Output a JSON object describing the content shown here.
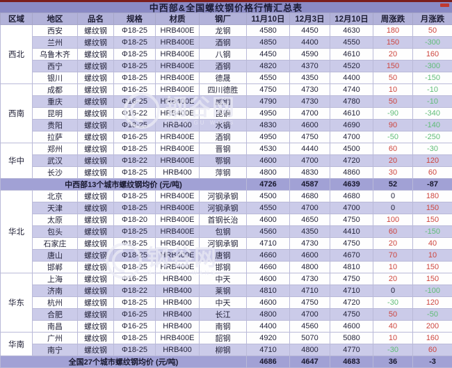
{
  "colors": {
    "title_bg": "#8a8ac5",
    "header_bg": "#b2b2d9",
    "stripe_bg": "#cbcbe9",
    "summary_bg": "#a1a1d5",
    "grid_line": "#b9b9d8",
    "text_dark": "#23233a",
    "up_red": "#cd453e",
    "down_green": "#5fbc77",
    "top_line": "#7a1d1d",
    "red_mark": "#c03a30"
  },
  "watermark": {
    "logo_text": "钢谷网",
    "sub_text": "GANG GU WANG"
  },
  "chart_data": {
    "type": "table",
    "title": "中西部&全国螺纹钢价格行情汇总表",
    "columns": [
      "区域",
      "地区",
      "品名",
      "规格",
      "材质",
      "钢厂",
      "11月10日",
      "12月3日",
      "12月10日",
      "周涨跌",
      "月涨跌"
    ],
    "date_keys": [
      "nov10",
      "dec3",
      "dec10"
    ],
    "unit": "元/吨",
    "rows": [
      {
        "type": "city",
        "region": "西北",
        "city": "西安",
        "product": "螺纹钢",
        "spec": "Φ18-25",
        "material": "HRB400E",
        "mill": "龙钢",
        "prices": [
          "4580",
          "4450",
          "4630"
        ],
        "week": "180",
        "month": "50"
      },
      {
        "type": "city",
        "region": "西北",
        "city": "兰州",
        "product": "螺纹钢",
        "spec": "Φ18-25",
        "material": "HRB400E",
        "mill": "酒钢",
        "prices": [
          "4850",
          "4400",
          "4550"
        ],
        "week": "150",
        "month": "-300"
      },
      {
        "type": "city",
        "region": "西北",
        "city": "乌鲁木齐",
        "product": "螺纹钢",
        "spec": "Φ18-25",
        "material": "HRB400E",
        "mill": "八钢",
        "prices": [
          "4450",
          "4590",
          "4610"
        ],
        "week": "20",
        "month": "160"
      },
      {
        "type": "city",
        "region": "西北",
        "city": "西宁",
        "product": "螺纹钢",
        "spec": "Φ18-25",
        "material": "HRB400E",
        "mill": "酒钢",
        "prices": [
          "4820",
          "4370",
          "4520"
        ],
        "week": "150",
        "month": "-300"
      },
      {
        "type": "city",
        "region": "西北",
        "city": "银川",
        "product": "螺纹钢",
        "spec": "Φ18-25",
        "material": "HRB400E",
        "mill": "德晟",
        "prices": [
          "4550",
          "4350",
          "4400"
        ],
        "week": "50",
        "month": "-150"
      },
      {
        "type": "city",
        "region": "西南",
        "city": "成都",
        "product": "螺纹钢",
        "spec": "Φ16-25",
        "material": "HRB400E",
        "mill": "四川德胜",
        "prices": [
          "4750",
          "4730",
          "4740"
        ],
        "week": "10",
        "month": "-10"
      },
      {
        "type": "city",
        "region": "西南",
        "city": "重庆",
        "product": "螺纹钢",
        "spec": "Φ16-25",
        "material": "HRB400E",
        "mill": "威钢",
        "prices": [
          "4790",
          "4730",
          "4780"
        ],
        "week": "50",
        "month": "-10"
      },
      {
        "type": "city",
        "region": "西南",
        "city": "昆明",
        "product": "螺纹钢",
        "spec": "Φ16-22",
        "material": "HRB400E",
        "mill": "昆钢",
        "prices": [
          "4950",
          "4700",
          "4610"
        ],
        "week": "-90",
        "month": "-340"
      },
      {
        "type": "city",
        "region": "西南",
        "city": "贵阳",
        "product": "螺纹钢",
        "spec": "Φ18-25",
        "material": "HRB400",
        "mill": "水钢",
        "prices": [
          "4830",
          "4600",
          "4690"
        ],
        "week": "90",
        "month": "-140"
      },
      {
        "type": "city",
        "region": "西南",
        "city": "拉萨",
        "product": "螺纹钢",
        "spec": "Φ16-25",
        "material": "HRB400E",
        "mill": "酒钢",
        "prices": [
          "4950",
          "4750",
          "4700"
        ],
        "week": "-50",
        "month": "-250"
      },
      {
        "type": "city",
        "region": "华中",
        "city": "郑州",
        "product": "螺纹钢",
        "spec": "Φ18-25",
        "material": "HRB400E",
        "mill": "晋钢",
        "prices": [
          "4530",
          "4440",
          "4500"
        ],
        "week": "60",
        "month": "-30"
      },
      {
        "type": "city",
        "region": "华中",
        "city": "武汉",
        "product": "螺纹钢",
        "spec": "Φ18-22",
        "material": "HRB400E",
        "mill": "鄂钢",
        "prices": [
          "4600",
          "4700",
          "4720"
        ],
        "week": "20",
        "month": "120"
      },
      {
        "type": "city",
        "region": "华中",
        "city": "长沙",
        "product": "螺纹钢",
        "spec": "Φ18-25",
        "material": "HRB400",
        "mill": "萍钢",
        "prices": [
          "4800",
          "4830",
          "4860"
        ],
        "week": "30",
        "month": "60"
      },
      {
        "type": "summary",
        "label": "中西部13个城市螺纹钢均价 (元/吨)",
        "prices": [
          "4726",
          "4587",
          "4639"
        ],
        "week": "52",
        "month": "-87"
      },
      {
        "type": "city",
        "region": "华北",
        "city": "北京",
        "product": "螺纹钢",
        "spec": "Φ18-25",
        "material": "HRB400E",
        "mill": "河钢承钢",
        "prices": [
          "4500",
          "4680",
          "4680"
        ],
        "week": "0",
        "month": "180"
      },
      {
        "type": "city",
        "region": "华北",
        "city": "天津",
        "product": "螺纹钢",
        "spec": "Φ18-25",
        "material": "HRB400E",
        "mill": "河钢承钢",
        "prices": [
          "4550",
          "4700",
          "4700"
        ],
        "week": "0",
        "month": "150"
      },
      {
        "type": "city",
        "region": "华北",
        "city": "太原",
        "product": "螺纹钢",
        "spec": "Φ18-20",
        "material": "HRB400E",
        "mill": "首钢长治",
        "prices": [
          "4600",
          "4650",
          "4750"
        ],
        "week": "100",
        "month": "150"
      },
      {
        "type": "city",
        "region": "华北",
        "city": "包头",
        "product": "螺纹钢",
        "spec": "Φ18-25",
        "material": "HRB400E",
        "mill": "包钢",
        "prices": [
          "4560",
          "4350",
          "4410"
        ],
        "week": "60",
        "month": "-150"
      },
      {
        "type": "city",
        "region": "华北",
        "city": "石家庄",
        "product": "螺纹钢",
        "spec": "Φ18-25",
        "material": "HRB400E",
        "mill": "河钢承钢",
        "prices": [
          "4710",
          "4730",
          "4750"
        ],
        "week": "20",
        "month": "40"
      },
      {
        "type": "city",
        "region": "华北",
        "city": "唐山",
        "product": "螺纹钢",
        "spec": "Φ18-25",
        "material": "HRB400E",
        "mill": "唐钢",
        "prices": [
          "4660",
          "4600",
          "4670"
        ],
        "week": "70",
        "month": "10"
      },
      {
        "type": "city",
        "region": "华北",
        "city": "邯郸",
        "product": "螺纹钢",
        "spec": "Φ18-25",
        "material": "HRB400E",
        "mill": "邯钢",
        "prices": [
          "4660",
          "4800",
          "4810"
        ],
        "week": "10",
        "month": "150"
      },
      {
        "type": "city",
        "region": "华东",
        "city": "上海",
        "product": "螺纹钢",
        "spec": "Φ16-25",
        "material": "HRB400",
        "mill": "中天",
        "prices": [
          "4600",
          "4730",
          "4750"
        ],
        "week": "20",
        "month": "150"
      },
      {
        "type": "city",
        "region": "华东",
        "city": "济南",
        "product": "螺纹钢",
        "spec": "Φ18-22",
        "material": "HRB400",
        "mill": "莱钢",
        "prices": [
          "4810",
          "4710",
          "4710"
        ],
        "week": "0",
        "month": "-100"
      },
      {
        "type": "city",
        "region": "华东",
        "city": "杭州",
        "product": "螺纹钢",
        "spec": "Φ18-25",
        "material": "HRB400",
        "mill": "中天",
        "prices": [
          "4600",
          "4750",
          "4720"
        ],
        "week": "-30",
        "month": "120"
      },
      {
        "type": "city",
        "region": "华东",
        "city": "合肥",
        "product": "螺纹钢",
        "spec": "Φ16-25",
        "material": "HRB400",
        "mill": "长江",
        "prices": [
          "4800",
          "4700",
          "4750"
        ],
        "week": "50",
        "month": "-50"
      },
      {
        "type": "city",
        "region": "华东",
        "city": "南昌",
        "product": "螺纹钢",
        "spec": "Φ16-25",
        "material": "HRB400",
        "mill": "南钢",
        "prices": [
          "4400",
          "4560",
          "4600"
        ],
        "week": "40",
        "month": "200"
      },
      {
        "type": "city",
        "region": "华南",
        "city": "广州",
        "product": "螺纹钢",
        "spec": "Φ18-25",
        "material": "HRB400E",
        "mill": "韶钢",
        "prices": [
          "4920",
          "5070",
          "5080"
        ],
        "week": "10",
        "month": "160"
      },
      {
        "type": "city",
        "region": "华南",
        "city": "南宁",
        "product": "螺纹钢",
        "spec": "Φ18-25",
        "material": "HRB400",
        "mill": "柳钢",
        "prices": [
          "4710",
          "4800",
          "4770"
        ],
        "week": "-30",
        "month": "60"
      },
      {
        "type": "summary",
        "label": "全国27个城市螺纹钢均价 (元/吨)",
        "prices": [
          "4686",
          "4647",
          "4683"
        ],
        "week": "36",
        "month": "-3"
      }
    ]
  }
}
